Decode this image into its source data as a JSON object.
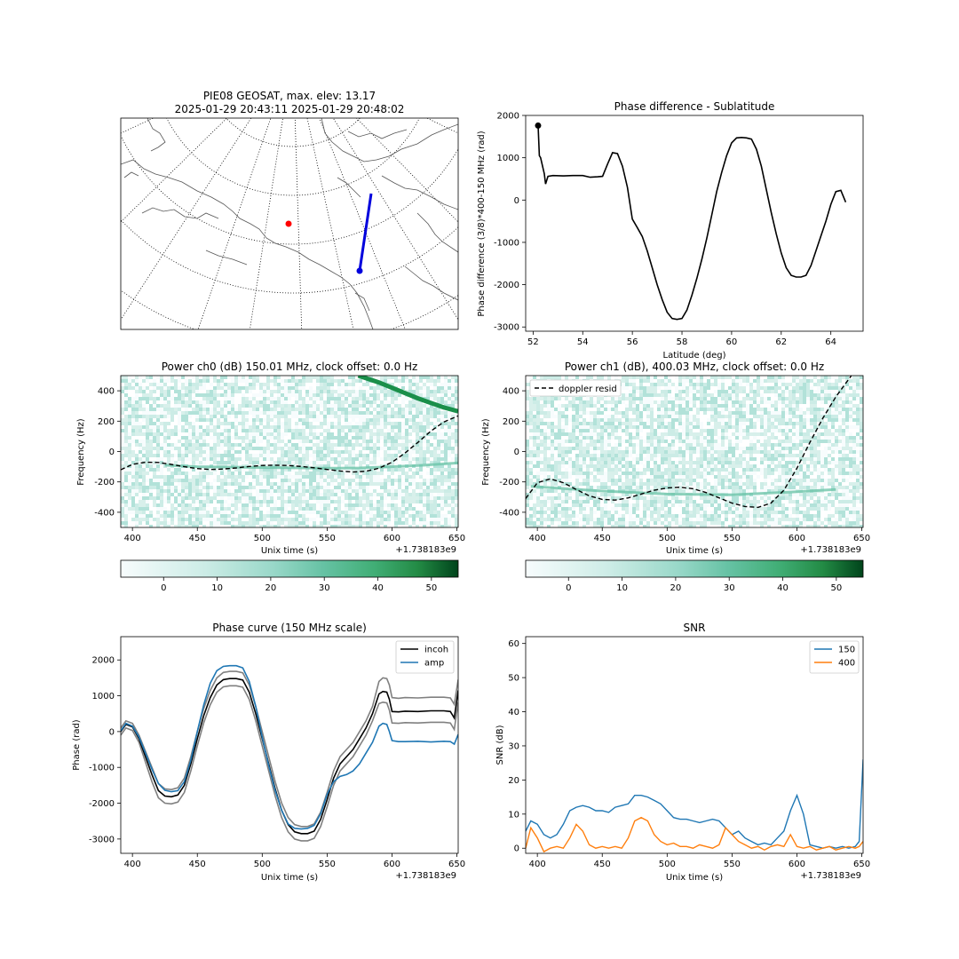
{
  "chart_data": [
    {
      "id": "map",
      "type": "other",
      "title_lines": [
        "PIE08 GEOSAT, max. elev: 13.17",
        "2025-01-29 20:43:11 2025-01-29 20:48:02"
      ],
      "colors": {
        "track": "#0000dd",
        "station": "#ff0000",
        "start_marker": "#0000dd"
      }
    },
    {
      "id": "phase-lat",
      "type": "line",
      "title": "Phase difference - Sublatitude",
      "xlabel": "Latitude (deg)",
      "ylabel": "Phase difference (3/8)*400-150 MHz (rad)",
      "xlim": [
        51.7,
        65.3
      ],
      "ylim": [
        -3100,
        2000
      ],
      "xticks": [
        52,
        54,
        56,
        58,
        60,
        62,
        64
      ],
      "yticks": [
        -3000,
        -2000,
        -1000,
        0,
        1000,
        2000
      ],
      "x": [
        52.2,
        52.25,
        52.3,
        52.45,
        52.5,
        52.6,
        52.8,
        53.2,
        53.6,
        54.0,
        54.3,
        54.6,
        54.8,
        55.0,
        55.2,
        55.4,
        55.6,
        55.8,
        56.0,
        56.2,
        56.4,
        56.6,
        56.8,
        57.0,
        57.2,
        57.4,
        57.6,
        57.8,
        58.0,
        58.2,
        58.4,
        58.6,
        58.8,
        59.0,
        59.2,
        59.4,
        59.6,
        59.8,
        60.0,
        60.2,
        60.4,
        60.6,
        60.8,
        61.0,
        61.2,
        61.4,
        61.6,
        61.8,
        62.0,
        62.2,
        62.4,
        62.6,
        62.8,
        63.0,
        63.2,
        63.4,
        63.6,
        63.8,
        64.0,
        64.2,
        64.4,
        64.6
      ],
      "y": [
        1760,
        1050,
        1000,
        620,
        380,
        560,
        580,
        570,
        580,
        580,
        540,
        550,
        560,
        850,
        1120,
        1100,
        800,
        300,
        -450,
        -650,
        -860,
        -1200,
        -1600,
        -2000,
        -2350,
        -2650,
        -2800,
        -2820,
        -2800,
        -2600,
        -2250,
        -1850,
        -1400,
        -900,
        -350,
        200,
        650,
        1050,
        1350,
        1470,
        1480,
        1470,
        1440,
        1200,
        800,
        250,
        -300,
        -800,
        -1250,
        -1600,
        -1780,
        -1820,
        -1820,
        -1780,
        -1550,
        -1200,
        -850,
        -500,
        -100,
        200,
        230,
        -50
      ],
      "start_marker": {
        "x": 52.2,
        "y": 1760
      }
    },
    {
      "id": "power-ch0",
      "type": "heatmap",
      "title": "Power ch0 (dB) 150.01 MHz, clock offset: 0.0 Hz",
      "xlabel": "Unix time (s)",
      "ylabel": "Frequency (Hz)",
      "offset_text": "+1.738183e9",
      "xlim": [
        391,
        651
      ],
      "ylim": [
        -500,
        500
      ],
      "xticks": [
        400,
        450,
        500,
        550,
        600,
        650
      ],
      "yticks": [
        -400,
        -200,
        0,
        200,
        400
      ],
      "colorbar_ticks": [
        0,
        10,
        20,
        30,
        40,
        50
      ],
      "colorbar_range": [
        -8,
        55
      ],
      "doppler_resid": {
        "x": [
          391,
          400,
          410,
          420,
          430,
          440,
          450,
          460,
          470,
          480,
          490,
          500,
          510,
          520,
          530,
          540,
          550,
          560,
          570,
          580,
          590,
          600,
          610,
          620,
          630,
          640,
          651
        ],
        "y": [
          -120,
          -85,
          -70,
          -72,
          -85,
          -100,
          -112,
          -118,
          -115,
          -108,
          -98,
          -92,
          -90,
          -92,
          -98,
          -107,
          -118,
          -128,
          -135,
          -130,
          -110,
          -70,
          -10,
          60,
          135,
          195,
          235
        ]
      },
      "signal_trace": {
        "x": [
          425,
          450,
          500,
          550,
          575,
          600,
          625,
          651
        ],
        "y": [
          -90,
          -100,
          -105,
          -110,
          -108,
          -100,
          -90,
          -75
        ]
      },
      "satellite_trace": {
        "x": [
          574,
          590,
          600,
          610,
          620,
          630,
          640,
          651
        ],
        "y": [
          500,
          455,
          420,
          385,
          350,
          320,
          290,
          265
        ]
      }
    },
    {
      "id": "power-ch1",
      "type": "heatmap",
      "title": "Power ch1 (dB), 400.03 MHz, clock offset: 0.0 Hz",
      "xlabel": "Unix time (s)",
      "ylabel": "Frequency (Hz)",
      "offset_text": "+1.738183e9",
      "xlim": [
        391,
        651
      ],
      "ylim": [
        -500,
        500
      ],
      "xticks": [
        400,
        450,
        500,
        550,
        600,
        650
      ],
      "yticks": [
        -400,
        -200,
        0,
        200,
        400
      ],
      "colorbar_ticks": [
        0,
        10,
        20,
        30,
        40,
        50
      ],
      "colorbar_range": [
        -8,
        55
      ],
      "legend": [
        "doppler resid"
      ],
      "doppler_resid": {
        "x": [
          391,
          400,
          410,
          420,
          430,
          440,
          450,
          460,
          470,
          480,
          490,
          500,
          510,
          520,
          530,
          540,
          550,
          560,
          570,
          580,
          590,
          600,
          610,
          620,
          630,
          642
        ],
        "y": [
          -310,
          -205,
          -180,
          -205,
          -250,
          -292,
          -315,
          -320,
          -305,
          -280,
          -255,
          -240,
          -235,
          -245,
          -270,
          -305,
          -340,
          -362,
          -368,
          -340,
          -255,
          -110,
          60,
          220,
          360,
          500
        ]
      },
      "signal_trace": {
        "x": [
          395,
          450,
          500,
          550,
          600,
          630
        ],
        "y": [
          -230,
          -260,
          -280,
          -285,
          -265,
          -250
        ]
      }
    },
    {
      "id": "phase-curve",
      "type": "line",
      "title": "Phase curve (150 MHz scale)",
      "xlabel": "Unix time (s)",
      "ylabel": "Phase (rad)",
      "offset_text": "+1.738183e9",
      "xlim": [
        391,
        651
      ],
      "ylim": [
        -3400,
        2650
      ],
      "xticks": [
        400,
        450,
        500,
        550,
        600,
        650
      ],
      "yticks": [
        -3000,
        -2000,
        -1000,
        0,
        1000,
        2000
      ],
      "x": [
        391,
        395,
        400,
        405,
        410,
        415,
        420,
        425,
        430,
        435,
        440,
        445,
        450,
        455,
        460,
        465,
        470,
        475,
        480,
        485,
        490,
        495,
        500,
        505,
        510,
        515,
        520,
        525,
        530,
        535,
        540,
        545,
        550,
        555,
        560,
        565,
        570,
        575,
        580,
        585,
        590,
        593,
        596,
        598,
        600,
        605,
        610,
        620,
        630,
        640,
        645,
        648,
        651
      ],
      "series": [
        {
          "name": "incoh",
          "color": "#000000",
          "values": [
            0,
            200,
            130,
            -200,
            -700,
            -1200,
            -1650,
            -1800,
            -1820,
            -1770,
            -1500,
            -900,
            -200,
            450,
            950,
            1300,
            1450,
            1480,
            1480,
            1440,
            1100,
            500,
            -200,
            -900,
            -1600,
            -2200,
            -2600,
            -2800,
            -2850,
            -2850,
            -2780,
            -2450,
            -1900,
            -1300,
            -900,
            -700,
            -500,
            -200,
            100,
            500,
            1050,
            1120,
            1100,
            900,
            560,
            550,
            570,
            560,
            580,
            580,
            560,
            380,
            1150
          ]
        },
        {
          "name": "amp",
          "color": "#1f77b4",
          "values": [
            20,
            230,
            150,
            -150,
            -600,
            -1050,
            -1450,
            -1640,
            -1680,
            -1650,
            -1400,
            -800,
            0,
            750,
            1350,
            1700,
            1820,
            1840,
            1840,
            1780,
            1400,
            700,
            -150,
            -950,
            -1650,
            -2200,
            -2580,
            -2700,
            -2720,
            -2700,
            -2620,
            -2300,
            -1750,
            -1400,
            -1250,
            -1200,
            -1100,
            -900,
            -600,
            -300,
            150,
            230,
            200,
            0,
            -250,
            -280,
            -280,
            -270,
            -290,
            -270,
            -280,
            -350,
            -80
          ]
        }
      ],
      "bounds": {
        "color": "#808080",
        "upper": [
          100,
          300,
          230,
          -100,
          -550,
          -1000,
          -1450,
          -1600,
          -1620,
          -1570,
          -1300,
          -700,
          0,
          650,
          1150,
          1500,
          1650,
          1680,
          1680,
          1640,
          1300,
          700,
          0,
          -700,
          -1400,
          -2000,
          -2400,
          -2600,
          -2650,
          -2650,
          -2580,
          -2250,
          -1700,
          -1100,
          -700,
          -500,
          -300,
          0,
          300,
          700,
          1400,
          1500,
          1480,
          1300,
          950,
          930,
          950,
          940,
          960,
          960,
          940,
          760,
          1450
        ],
        "lower": [
          -100,
          100,
          30,
          -300,
          -850,
          -1400,
          -1850,
          -2000,
          -2020,
          -1970,
          -1700,
          -1100,
          -400,
          250,
          750,
          1100,
          1250,
          1280,
          1280,
          1240,
          900,
          300,
          -400,
          -1100,
          -1800,
          -2400,
          -2800,
          -3000,
          -3050,
          -3050,
          -2980,
          -2650,
          -2100,
          -1500,
          -1100,
          -900,
          -700,
          -400,
          -100,
          300,
          780,
          820,
          800,
          600,
          240,
          230,
          250,
          240,
          260,
          260,
          240,
          60,
          820
        ]
      }
    },
    {
      "id": "snr",
      "type": "line",
      "title": "SNR",
      "xlabel": "Unix time (s)",
      "ylabel": "SNR (dB)",
      "offset_text": "+1.738183e9",
      "xlim": [
        391,
        651
      ],
      "ylim": [
        -1.5,
        62
      ],
      "xticks": [
        400,
        450,
        500,
        550,
        600,
        650
      ],
      "yticks": [
        0,
        10,
        20,
        30,
        40,
        50,
        60
      ],
      "x": [
        391,
        395,
        400,
        405,
        410,
        415,
        420,
        425,
        430,
        435,
        440,
        445,
        450,
        455,
        460,
        465,
        470,
        475,
        480,
        485,
        490,
        495,
        500,
        505,
        510,
        515,
        520,
        525,
        530,
        535,
        540,
        545,
        550,
        555,
        560,
        565,
        570,
        575,
        580,
        585,
        590,
        595,
        600,
        605,
        610,
        615,
        620,
        625,
        630,
        635,
        640,
        645,
        648,
        651
      ],
      "series": [
        {
          "name": "150",
          "color": "#1f77b4",
          "values": [
            5,
            8,
            7,
            4,
            3,
            4,
            7,
            11,
            12,
            12.5,
            12,
            11,
            11,
            10.5,
            12,
            12.5,
            13,
            15.5,
            15.5,
            15,
            14,
            13,
            11,
            9,
            8.5,
            8.5,
            8,
            7.5,
            8,
            8.5,
            8,
            6,
            4,
            5,
            3,
            2,
            1,
            1.5,
            1,
            3,
            5,
            11,
            15.5,
            10,
            1,
            0.5,
            0,
            0.5,
            0,
            0.5,
            0,
            0.5,
            2,
            26
          ]
        },
        {
          "name": "400",
          "color": "#ff7f0e",
          "values": [
            0,
            6,
            3,
            -1,
            0,
            0.5,
            0,
            3,
            7,
            5,
            1,
            0,
            0.5,
            0,
            0.5,
            0,
            3,
            8,
            9,
            8,
            4,
            2,
            1,
            1.5,
            0.5,
            0.5,
            0,
            1,
            0.5,
            0,
            1,
            6,
            4,
            2,
            1,
            0,
            0.5,
            -0.5,
            0.5,
            1,
            0.5,
            4,
            0.5,
            0,
            0.5,
            -0.5,
            0,
            0.5,
            -0.5,
            0,
            0.5,
            0,
            0.5,
            2
          ]
        }
      ]
    }
  ]
}
